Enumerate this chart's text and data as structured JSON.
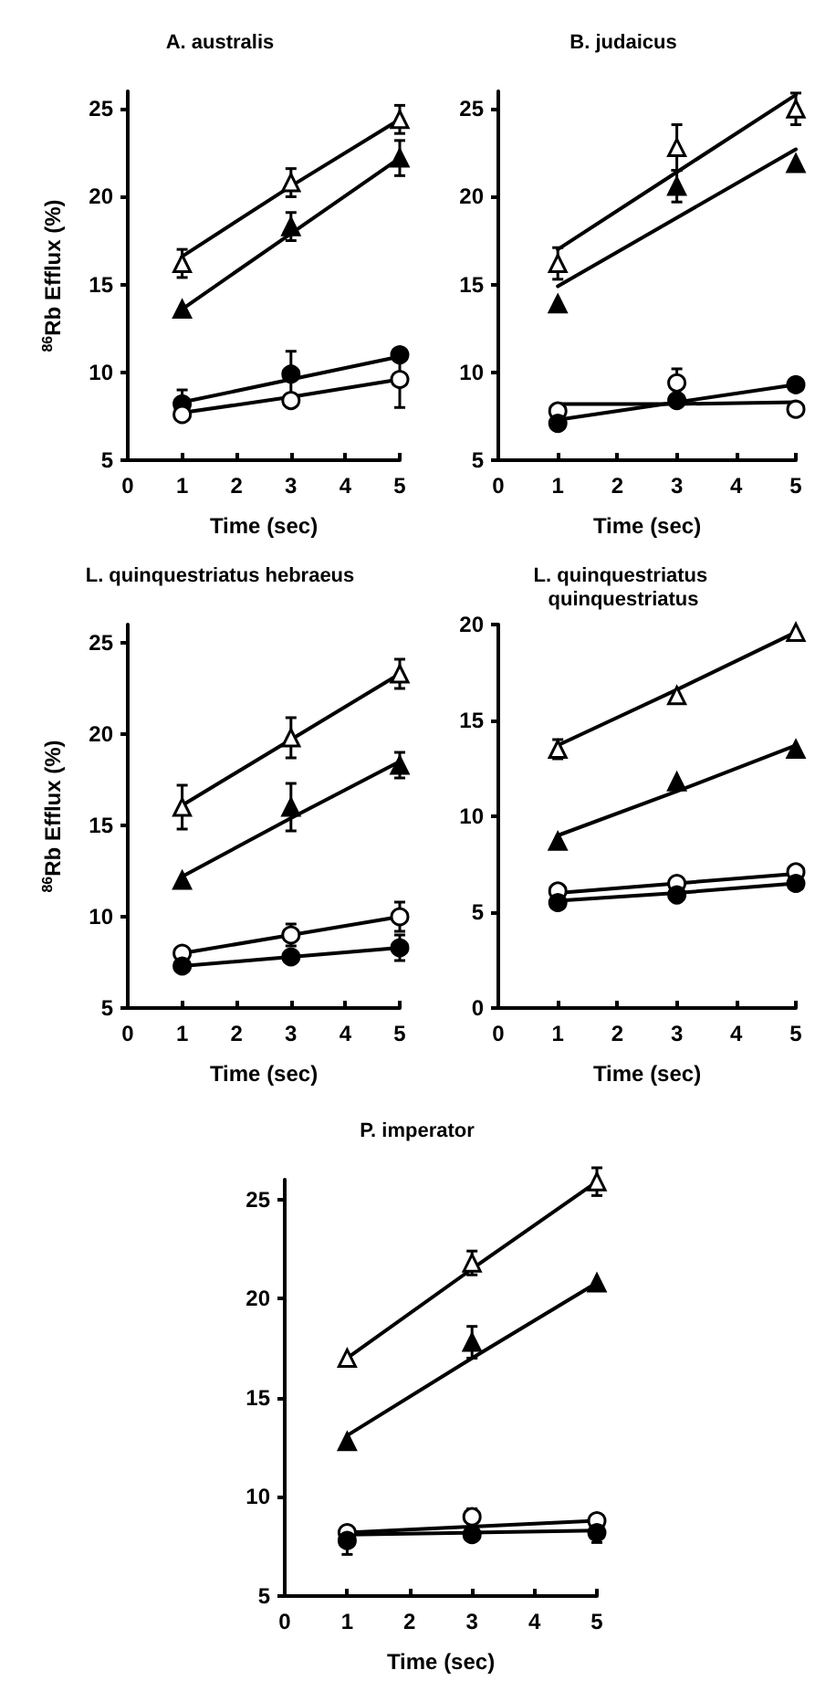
{
  "chart_data": [
    {
      "type": "scatter",
      "title": "A. australis",
      "xlabel": "Time (sec)",
      "ylabel": "$^{86}$Rb Efflux (%)",
      "x": [
        1,
        3,
        5
      ],
      "xlim": [
        0,
        5
      ],
      "xticks": [
        0,
        1,
        2,
        3,
        4,
        5
      ],
      "ylim": [
        5,
        26
      ],
      "yticks": [
        5,
        10,
        15,
        20,
        25
      ],
      "grid": false,
      "series": [
        {
          "marker": "triangle",
          "color": "#ffffff",
          "values": [
            16.2,
            20.8,
            24.4
          ],
          "errors": [
            0.8,
            0.8,
            0.8
          ]
        },
        {
          "marker": "triangle",
          "color": "#000000",
          "values": [
            13.6,
            18.3,
            22.2
          ],
          "errors": [
            null,
            0.8,
            1.0
          ]
        },
        {
          "marker": "circle",
          "color": "#000000",
          "values": [
            8.2,
            9.9,
            11.0
          ],
          "errors": [
            0.8,
            1.3,
            0.3
          ]
        },
        {
          "marker": "circle",
          "color": "#ffffff",
          "values": [
            7.6,
            8.4,
            9.6
          ],
          "errors": [
            null,
            null,
            1.6
          ]
        },
        {
          "type": "line",
          "marker": "none",
          "color": "#000000",
          "values": [
            16.6,
            20.6,
            24.4
          ]
        },
        {
          "type": "line",
          "marker": "none",
          "color": "#000000",
          "values": [
            13.6,
            17.9,
            22.2
          ]
        },
        {
          "type": "line",
          "marker": "none",
          "color": "#000000",
          "values": [
            8.3,
            9.6,
            10.9
          ]
        },
        {
          "type": "line",
          "marker": "none",
          "color": "#000000",
          "values": [
            7.7,
            8.6,
            9.6
          ]
        }
      ]
    },
    {
      "type": "scatter",
      "title": "B. judaicus",
      "xlabel": "Time (sec)",
      "x": [
        1,
        3,
        5
      ],
      "xlim": [
        0,
        5
      ],
      "xticks": [
        0,
        1,
        2,
        3,
        4,
        5
      ],
      "ylim": [
        5,
        26
      ],
      "yticks": [
        5,
        10,
        15,
        20,
        25
      ],
      "grid": false,
      "series": [
        {
          "marker": "triangle",
          "color": "#ffffff",
          "values": [
            16.2,
            22.8,
            25.0
          ],
          "errors": [
            0.9,
            1.3,
            0.9
          ]
        },
        {
          "marker": "triangle",
          "color": "#000000",
          "values": [
            13.9,
            20.6,
            21.9
          ],
          "errors": [
            null,
            0.9,
            null
          ]
        },
        {
          "marker": "circle",
          "color": "#ffffff",
          "values": [
            7.8,
            9.4,
            7.9
          ],
          "errors": [
            null,
            0.8,
            null
          ]
        },
        {
          "marker": "circle",
          "color": "#000000",
          "values": [
            7.1,
            8.4,
            9.3
          ],
          "errors": [
            null,
            null,
            null
          ]
        },
        {
          "type": "line",
          "marker": "none",
          "color": "#000000",
          "values": [
            17.0,
            21.4,
            25.8
          ]
        },
        {
          "type": "line",
          "marker": "none",
          "color": "#000000",
          "values": [
            14.9,
            18.8,
            22.7
          ]
        },
        {
          "type": "line",
          "marker": "none",
          "color": "#000000",
          "values": [
            8.2,
            8.2,
            8.3
          ]
        },
        {
          "type": "line",
          "marker": "none",
          "color": "#000000",
          "values": [
            7.3,
            8.3,
            9.3
          ]
        }
      ]
    },
    {
      "type": "scatter",
      "title": "L. quinquestriatus hebraeus",
      "xlabel": "Time (sec)",
      "ylabel": "$^{86}$Rb Efflux (%)",
      "x": [
        1,
        3,
        5
      ],
      "xlim": [
        0,
        5
      ],
      "xticks": [
        0,
        1,
        2,
        3,
        4,
        5
      ],
      "ylim": [
        5,
        26
      ],
      "yticks": [
        5,
        10,
        15,
        20,
        25
      ],
      "grid": false,
      "series": [
        {
          "marker": "triangle",
          "color": "#ffffff",
          "values": [
            16.0,
            19.8,
            23.3
          ],
          "errors": [
            1.2,
            1.1,
            0.8
          ]
        },
        {
          "marker": "triangle",
          "color": "#000000",
          "values": [
            12.0,
            16.0,
            18.3
          ],
          "errors": [
            null,
            1.3,
            0.7
          ]
        },
        {
          "marker": "circle",
          "color": "#ffffff",
          "values": [
            8.0,
            9.0,
            10.0
          ],
          "errors": [
            null,
            0.6,
            0.8
          ]
        },
        {
          "marker": "circle",
          "color": "#000000",
          "values": [
            7.3,
            7.8,
            8.3
          ],
          "errors": [
            null,
            null,
            0.7
          ]
        },
        {
          "type": "line",
          "marker": "none",
          "color": "#000000",
          "values": [
            16.1,
            19.7,
            23.3
          ]
        },
        {
          "type": "line",
          "marker": "none",
          "color": "#000000",
          "values": [
            12.2,
            15.4,
            18.5
          ]
        },
        {
          "type": "line",
          "marker": "none",
          "color": "#000000",
          "values": [
            8.0,
            9.0,
            10.0
          ]
        },
        {
          "type": "line",
          "marker": "none",
          "color": "#000000",
          "values": [
            7.3,
            7.8,
            8.3
          ]
        }
      ]
    },
    {
      "type": "scatter",
      "title": "L. quinquestriatus quinquestriatus",
      "xlabel": "Time (sec)",
      "x": [
        1,
        3,
        5
      ],
      "xlim": [
        0,
        5
      ],
      "xticks": [
        0,
        1,
        2,
        3,
        4,
        5
      ],
      "ylim": [
        0,
        20
      ],
      "yticks": [
        0,
        5,
        10,
        15,
        20
      ],
      "grid": false,
      "series": [
        {
          "marker": "triangle",
          "color": "#ffffff",
          "values": [
            13.5,
            16.3,
            19.6
          ],
          "errors": [
            0.5,
            null,
            null
          ]
        },
        {
          "marker": "triangle",
          "color": "#000000",
          "values": [
            8.7,
            11.8,
            13.5
          ],
          "errors": [
            null,
            null,
            null
          ]
        },
        {
          "marker": "circle",
          "color": "#ffffff",
          "values": [
            6.1,
            6.5,
            7.1
          ],
          "errors": [
            null,
            null,
            null
          ]
        },
        {
          "marker": "circle",
          "color": "#000000",
          "values": [
            5.5,
            5.9,
            6.5
          ],
          "errors": [
            null,
            null,
            null
          ]
        },
        {
          "type": "line",
          "marker": "none",
          "color": "#000000",
          "values": [
            13.7,
            16.6,
            19.6
          ]
        },
        {
          "type": "line",
          "marker": "none",
          "color": "#000000",
          "values": [
            9.0,
            11.3,
            13.7
          ]
        },
        {
          "type": "line",
          "marker": "none",
          "color": "#000000",
          "values": [
            6.0,
            6.5,
            7.0
          ]
        },
        {
          "type": "line",
          "marker": "none",
          "color": "#000000",
          "values": [
            5.6,
            6.0,
            6.5
          ]
        }
      ]
    },
    {
      "type": "scatter",
      "title": "P. imperator",
      "xlabel": "Time (sec)",
      "x": [
        1,
        3,
        5
      ],
      "xlim": [
        0,
        5
      ],
      "xticks": [
        0,
        1,
        2,
        3,
        4,
        5
      ],
      "ylim": [
        5,
        26
      ],
      "yticks": [
        5,
        10,
        15,
        20,
        25
      ],
      "grid": false,
      "series": [
        {
          "marker": "triangle",
          "color": "#ffffff",
          "values": [
            17.0,
            21.8,
            25.9
          ],
          "errors": [
            null,
            0.6,
            0.7
          ]
        },
        {
          "marker": "triangle",
          "color": "#000000",
          "values": [
            12.8,
            17.8,
            20.8
          ],
          "errors": [
            null,
            0.8,
            null
          ]
        },
        {
          "marker": "circle",
          "color": "#ffffff",
          "values": [
            8.2,
            9.0,
            8.8
          ],
          "errors": [
            null,
            0.4,
            null
          ]
        },
        {
          "marker": "circle",
          "color": "#000000",
          "values": [
            7.8,
            8.1,
            8.2
          ],
          "errors": [
            0.7,
            null,
            0.5
          ]
        },
        {
          "type": "line",
          "marker": "none",
          "color": "#000000",
          "values": [
            17.0,
            21.5,
            25.9
          ]
        },
        {
          "type": "line",
          "marker": "none",
          "color": "#000000",
          "values": [
            13.1,
            17.0,
            20.8
          ]
        },
        {
          "type": "line",
          "marker": "none",
          "color": "#000000",
          "values": [
            8.2,
            8.5,
            8.8
          ]
        },
        {
          "type": "line",
          "marker": "none",
          "color": "#000000",
          "values": [
            8.1,
            8.2,
            8.3
          ]
        }
      ]
    }
  ]
}
